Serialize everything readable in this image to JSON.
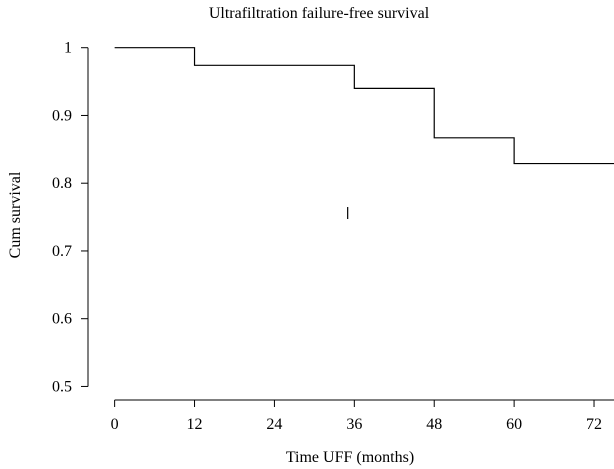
{
  "chart_data": {
    "type": "line",
    "title": "Ultrafiltration failure-free survival",
    "xlabel": "Time UFF (months)",
    "ylabel": "Cum survival",
    "xlim": [
      -4,
      75
    ],
    "ylim": [
      0.48,
      1.035
    ],
    "x_ticks": [
      0,
      12,
      24,
      36,
      48,
      60,
      72
    ],
    "x_tick_labels": [
      "0",
      "12",
      "24",
      "36",
      "48",
      "60",
      "72"
    ],
    "y_ticks": [
      0.5,
      0.6,
      0.7,
      0.8,
      0.9,
      1.0
    ],
    "y_tick_labels": [
      "0.5",
      "0.6",
      "0.7",
      "0.8",
      "0.9",
      "1"
    ],
    "grid": false,
    "series": [
      {
        "step": "post",
        "x": [
          0,
          12,
          36,
          48,
          60,
          75
        ],
        "y": [
          1.0,
          0.974,
          0.94,
          0.867,
          0.829,
          0.829
        ]
      }
    ],
    "censor_marks": [
      {
        "x": 35,
        "y": 0.756
      }
    ],
    "line_color": "#000000"
  }
}
